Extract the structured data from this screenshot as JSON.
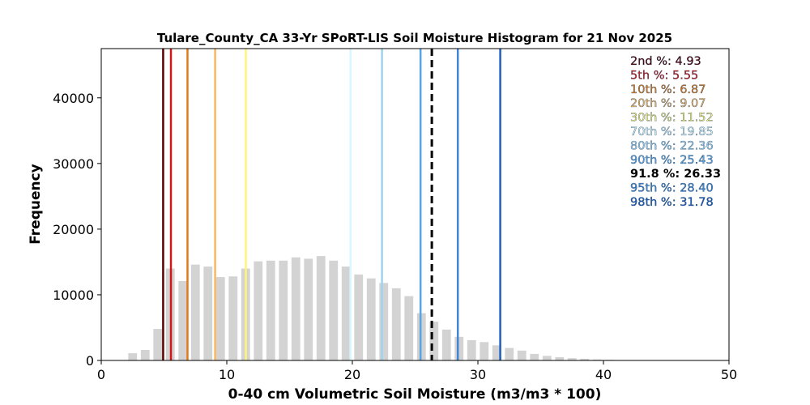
{
  "chart_data": {
    "type": "bar",
    "title": "Tulare_County_CA 33-Yr SPoRT-LIS Soil Moisture Histogram for 21 Nov 2025",
    "xlabel": "0-40 cm Volumetric Soil Moisture (m3/m3 * 100)",
    "ylabel": "Frequency",
    "xlim": [
      0,
      50
    ],
    "ylim": [
      0,
      47500
    ],
    "xticks": [
      0,
      10,
      20,
      30,
      40,
      50
    ],
    "yticks": [
      0,
      10000,
      20000,
      30000,
      40000
    ],
    "x_tick_labels": [
      "0",
      "10",
      "20",
      "30",
      "40",
      "50"
    ],
    "y_tick_labels": [
      "0",
      "10000",
      "20000",
      "30000",
      "40000"
    ],
    "grid": false,
    "legend_position": "top-right",
    "bar_color": "#d3d3d3",
    "bar_width": 0.7,
    "histogram": {
      "x": [
        2.5,
        3.5,
        4.5,
        5.5,
        6.5,
        7.5,
        8.5,
        9.5,
        10.5,
        11.5,
        12.5,
        13.5,
        14.5,
        15.5,
        16.5,
        17.5,
        18.5,
        19.5,
        20.5,
        21.5,
        22.5,
        23.5,
        24.5,
        25.5,
        26.5,
        27.5,
        28.5,
        29.5,
        30.5,
        31.5,
        32.5,
        33.5,
        34.5,
        35.5,
        36.5,
        37.5,
        38.5,
        39.5,
        40.5
      ],
      "values": [
        1100,
        1600,
        4800,
        14000,
        12100,
        14600,
        14300,
        12700,
        12800,
        14000,
        15100,
        15200,
        15200,
        15700,
        15500,
        15900,
        15200,
        14300,
        13100,
        12500,
        11800,
        11000,
        9800,
        7200,
        5900,
        4700,
        3600,
        3100,
        2800,
        2300,
        1900,
        1500,
        1000,
        700,
        500,
        350,
        250,
        150,
        100
      ]
    },
    "percentile_lines": [
      {
        "label": "2nd %",
        "value": 4.93,
        "value_text": "4.93",
        "color": "#5a0000"
      },
      {
        "label": "5th %",
        "value": 5.55,
        "value_text": "5.55",
        "color": "#d51616"
      },
      {
        "label": "10th %",
        "value": 6.87,
        "value_text": "6.87",
        "color": "#e07b1a"
      },
      {
        "label": "20th %",
        "value": 9.07,
        "value_text": "9.07",
        "color": "#f7b65f"
      },
      {
        "label": "30th %",
        "value": 11.52,
        "value_text": "11.52",
        "color": "#fff57a"
      },
      {
        "label": "70th %",
        "value": 19.85,
        "value_text": "19.85",
        "color": "#d6f7ff"
      },
      {
        "label": "80th %",
        "value": 22.36,
        "value_text": "22.36",
        "color": "#9fd3f0"
      },
      {
        "label": "90th %",
        "value": 25.43,
        "value_text": "25.43",
        "color": "#5aa3e6"
      },
      {
        "label": "95th %",
        "value": 28.4,
        "value_text": "28.40",
        "color": "#3f86d6"
      },
      {
        "label": "98th %",
        "value": 31.78,
        "value_text": "31.78",
        "color": "#1f5fbf"
      }
    ],
    "current_value": {
      "label": "91.8 %",
      "value": 26.33,
      "value_text": "26.33",
      "color": "#000000",
      "style": "dashed"
    }
  }
}
